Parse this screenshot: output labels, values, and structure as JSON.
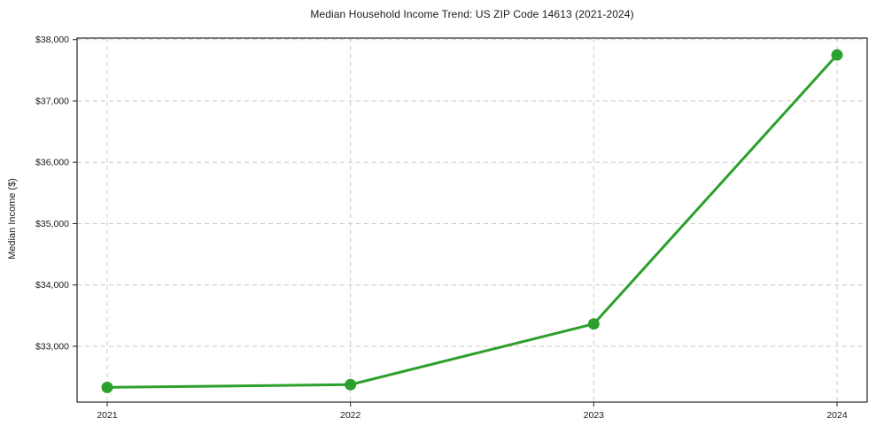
{
  "figure": {
    "background": "#ffffff"
  },
  "chart_data": {
    "type": "line",
    "title": "Median Household Income Trend: US ZIP Code 14613 (2021-2024)",
    "xlabel": "",
    "ylabel": "Median Income ($)",
    "categories": [
      "2021",
      "2022",
      "2023",
      "2024"
    ],
    "values": [
      32330,
      32375,
      33365,
      37750
    ],
    "ylim": [
      32090,
      38025
    ],
    "yticks": [
      33000,
      34000,
      35000,
      36000,
      37000,
      38000
    ],
    "ytick_labels": [
      "$33,000",
      "$34,000",
      "$35,000",
      "$36,000",
      "$37,000",
      "$38,000"
    ],
    "grid": "dashed",
    "legend_position": "none",
    "marker": "circle",
    "colors": {
      "line": "#2ca02c",
      "marker": "#2ca02c",
      "grid": "#cccccc",
      "axis": "#262626",
      "text": "#1a1a1a",
      "background": "#ffffff"
    }
  }
}
